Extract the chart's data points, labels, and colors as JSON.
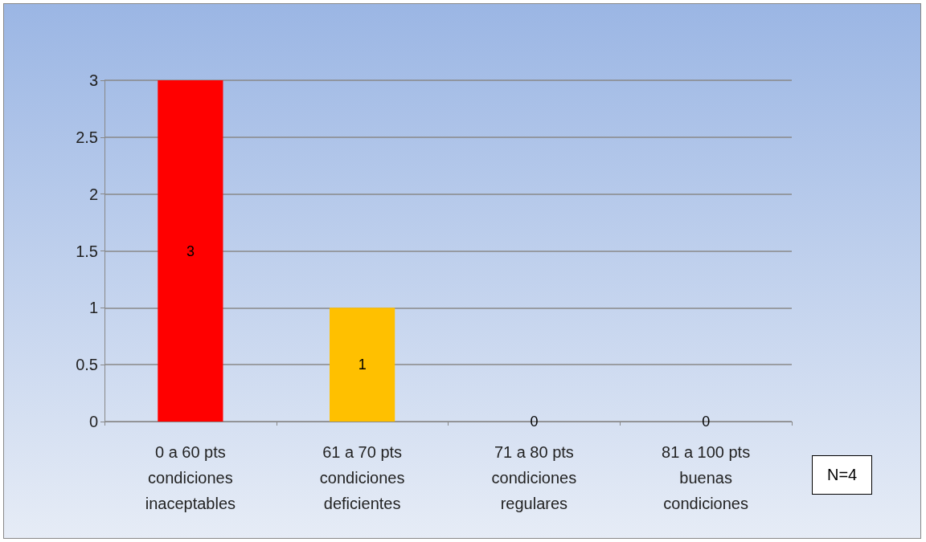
{
  "chart_data": {
    "type": "bar",
    "categories": [
      "0 a 60 pts\ncondiciones\ninaceptables",
      "61 a 70 pts\ncondiciones\ndeficientes",
      "71 a 80 pts\ncondiciones\nregulares",
      "81 a 100 pts\nbuenas\ncondiciones"
    ],
    "values": [
      3,
      1,
      0,
      0
    ],
    "colors": [
      "#ff0000",
      "#ffc000",
      "#c8c800",
      "#6a9a30"
    ],
    "ylim": [
      0,
      3
    ],
    "yticks": [
      0,
      0.5,
      1,
      1.5,
      2,
      2.5,
      3
    ],
    "grid": "y",
    "data_labels": true,
    "annotations": [
      "N=4"
    ]
  }
}
